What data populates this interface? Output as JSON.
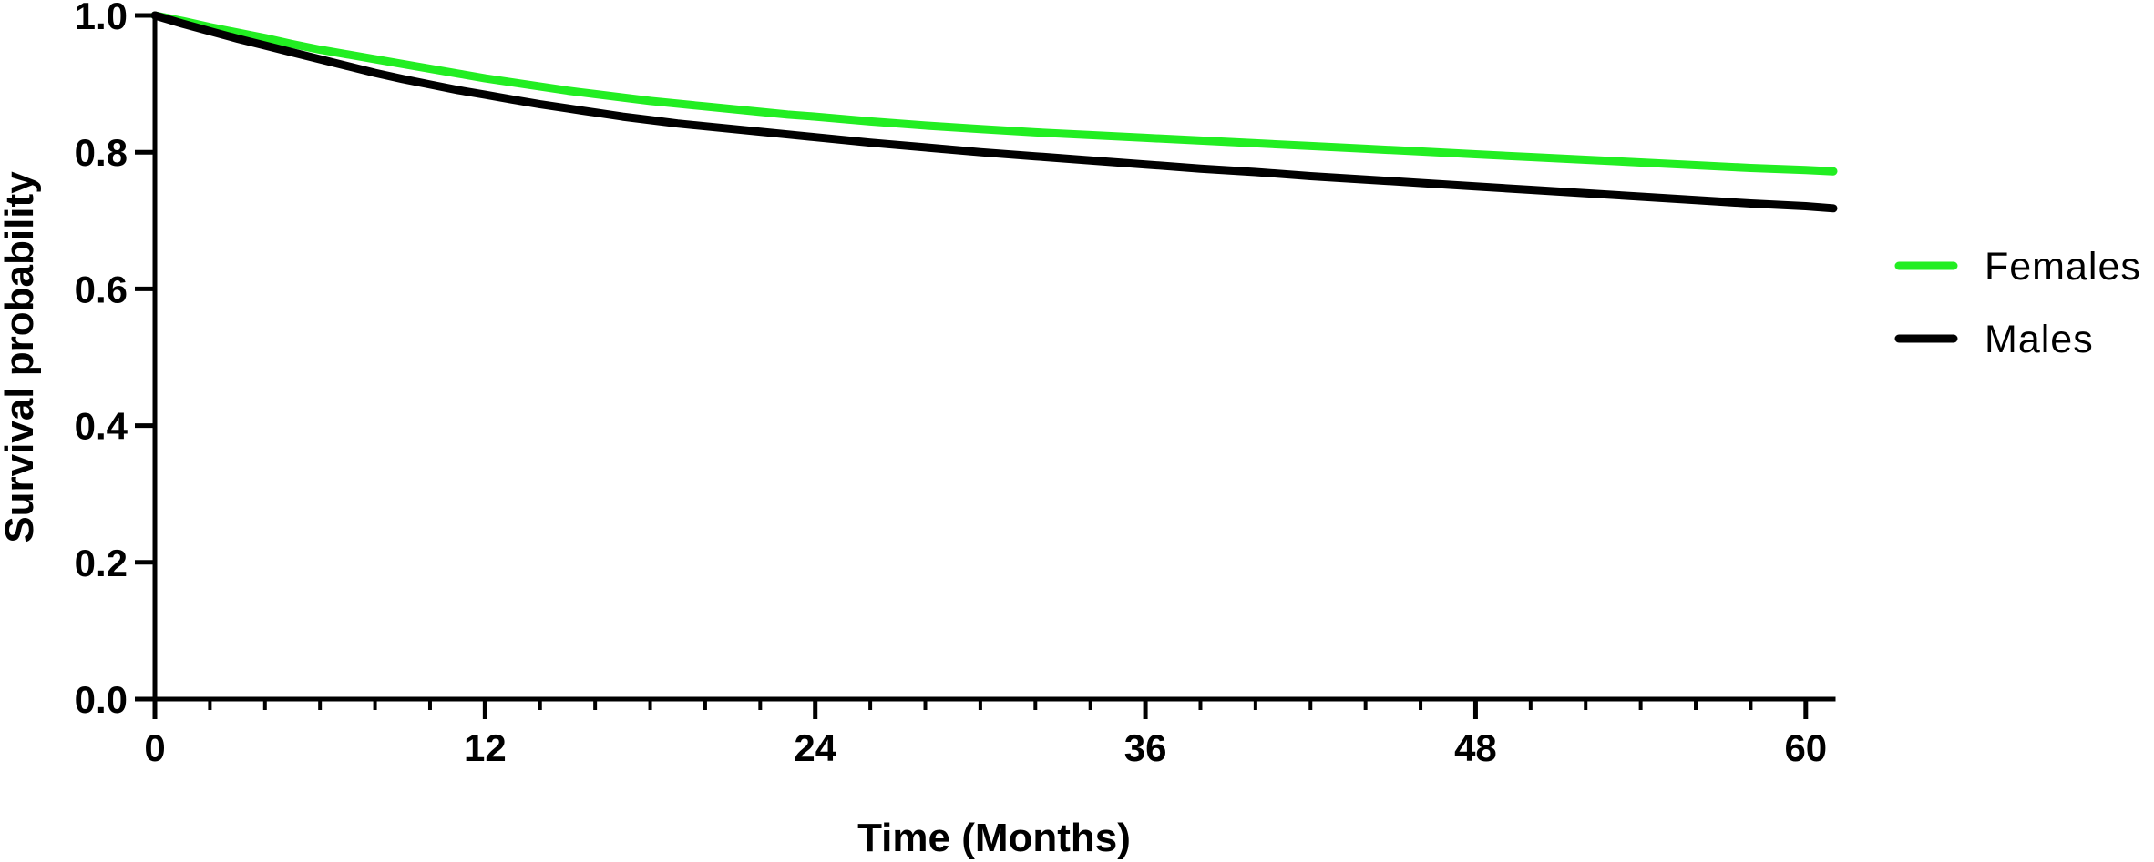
{
  "chart_data": {
    "type": "line",
    "title": "",
    "xlabel": "Time (Months)",
    "ylabel": "Survival probability",
    "xlim": [
      0,
      61
    ],
    "ylim": [
      0,
      1.0
    ],
    "x_ticks": [
      0,
      12,
      24,
      36,
      48,
      60
    ],
    "x_tick_labels": [
      "0",
      "12",
      "24",
      "36",
      "48",
      "60"
    ],
    "x_minor_step": 2,
    "y_ticks": [
      0.0,
      0.2,
      0.4,
      0.6,
      0.8,
      1.0
    ],
    "y_tick_labels": [
      "0.0",
      "0.2",
      "0.4",
      "0.6",
      "0.8",
      "1.0"
    ],
    "grid": false,
    "legend_position": "right",
    "series": [
      {
        "name": "Females",
        "color": "#22ee22",
        "x": [
          0,
          1,
          2,
          3,
          4,
          5,
          6,
          7,
          8,
          9,
          10,
          11,
          12,
          13,
          14,
          15,
          16,
          17,
          18,
          19,
          20,
          21,
          22,
          23,
          24,
          26,
          28,
          30,
          32,
          34,
          36,
          38,
          40,
          42,
          44,
          46,
          48,
          50,
          52,
          54,
          56,
          58,
          60,
          61
        ],
        "values": [
          1.0,
          0.992,
          0.983,
          0.975,
          0.967,
          0.958,
          0.95,
          0.943,
          0.936,
          0.929,
          0.922,
          0.915,
          0.908,
          0.902,
          0.896,
          0.89,
          0.885,
          0.88,
          0.875,
          0.871,
          0.867,
          0.863,
          0.859,
          0.855,
          0.852,
          0.845,
          0.839,
          0.834,
          0.829,
          0.825,
          0.821,
          0.817,
          0.813,
          0.809,
          0.805,
          0.801,
          0.797,
          0.793,
          0.789,
          0.785,
          0.781,
          0.777,
          0.774,
          0.772
        ]
      },
      {
        "name": "Males",
        "color": "#000000",
        "x": [
          0,
          1,
          2,
          3,
          4,
          5,
          6,
          7,
          8,
          9,
          10,
          11,
          12,
          13,
          14,
          15,
          16,
          17,
          18,
          19,
          20,
          21,
          22,
          23,
          24,
          26,
          28,
          30,
          32,
          34,
          36,
          38,
          40,
          42,
          44,
          46,
          48,
          50,
          52,
          54,
          56,
          58,
          60,
          61
        ],
        "values": [
          1.0,
          0.988,
          0.977,
          0.966,
          0.956,
          0.946,
          0.936,
          0.926,
          0.916,
          0.907,
          0.899,
          0.891,
          0.884,
          0.877,
          0.87,
          0.864,
          0.858,
          0.852,
          0.847,
          0.842,
          0.838,
          0.834,
          0.83,
          0.826,
          0.822,
          0.814,
          0.807,
          0.8,
          0.794,
          0.788,
          0.782,
          0.776,
          0.771,
          0.765,
          0.76,
          0.755,
          0.75,
          0.745,
          0.74,
          0.735,
          0.73,
          0.725,
          0.721,
          0.718
        ]
      }
    ]
  }
}
